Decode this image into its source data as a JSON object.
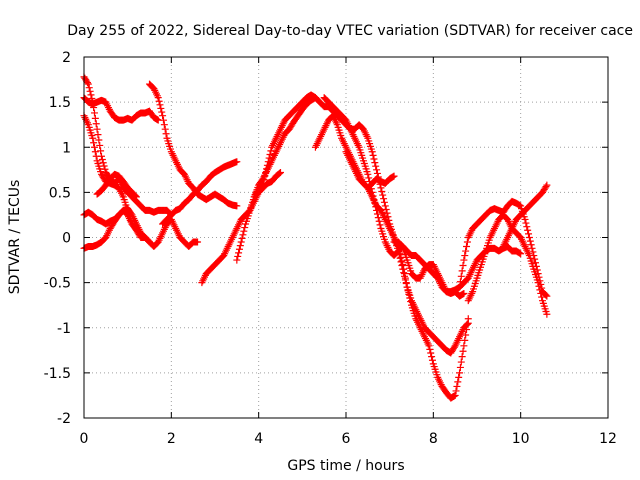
{
  "chart_data": {
    "type": "scatter",
    "title": "Day 255 of 2022, Sidereal Day-to-day VTEC variation (SDTVAR) for receiver cace",
    "xlabel": "GPS time / hours",
    "ylabel": "SDTVAR / TECUs",
    "xlim": [
      0,
      12
    ],
    "ylim": [
      -2,
      2
    ],
    "xticks": [
      "0",
      "2",
      "4",
      "6",
      "8",
      "10",
      "12"
    ],
    "yticks": [
      "2",
      "1.5",
      "1",
      "0.5",
      "0",
      "-0.5",
      "-1",
      "-1.5",
      "-2"
    ],
    "grid": true,
    "marker": "+",
    "color": "#ff0000",
    "series": [
      {
        "x": [
          0.0,
          0.1,
          0.2,
          0.3,
          0.4,
          0.5,
          0.6,
          0.7,
          0.8,
          0.9,
          1.0,
          1.1,
          1.2,
          1.3,
          1.4,
          1.5,
          1.6,
          1.7
        ],
        "y": [
          1.55,
          1.5,
          1.48,
          1.5,
          1.52,
          1.5,
          1.4,
          1.33,
          1.3,
          1.3,
          1.32,
          1.3,
          1.35,
          1.38,
          1.38,
          1.4,
          1.33,
          1.3
        ]
      },
      {
        "x": [
          0.0,
          0.1,
          0.2,
          0.3,
          0.4,
          0.5,
          0.6,
          0.7,
          0.8,
          0.9,
          1.0,
          1.1,
          1.2,
          1.3,
          1.4,
          1.5,
          1.6,
          1.7,
          1.8,
          1.9,
          2.0,
          2.1,
          2.2,
          2.3,
          2.4,
          2.5,
          2.6
        ],
        "y": [
          1.35,
          1.25,
          1.1,
          0.85,
          0.7,
          0.62,
          0.6,
          0.58,
          0.55,
          0.45,
          0.3,
          0.15,
          0.08,
          0.0,
          0.0,
          -0.05,
          -0.1,
          -0.05,
          0.05,
          0.15,
          0.2,
          0.1,
          0.0,
          -0.05,
          -0.1,
          -0.05,
          -0.05
        ]
      },
      {
        "x": [
          0.0,
          0.1,
          0.2,
          0.3,
          0.4,
          0.5,
          0.6,
          0.7,
          0.8,
          0.9,
          1.0,
          1.1,
          1.2,
          1.3,
          1.4,
          1.5,
          1.6,
          1.7,
          1.8,
          1.9,
          2.0
        ],
        "y": [
          1.78,
          1.7,
          1.5,
          1.2,
          0.9,
          0.72,
          0.65,
          0.6,
          0.65,
          0.55,
          0.5,
          0.45,
          0.4,
          0.35,
          0.3,
          0.3,
          0.28,
          0.3,
          0.3,
          0.3,
          0.25
        ]
      },
      {
        "x": [
          0.0,
          0.1,
          0.2,
          0.3,
          0.4,
          0.5,
          0.6,
          0.7,
          0.8,
          0.9,
          1.0,
          1.1,
          1.2,
          1.3,
          1.4,
          1.5
        ],
        "y": [
          0.25,
          0.28,
          0.25,
          0.2,
          0.18,
          0.15,
          0.18,
          0.2,
          0.25,
          0.3,
          0.32,
          0.25,
          0.15,
          0.05,
          0.0,
          -0.05
        ]
      },
      {
        "x": [
          0.0,
          0.1,
          0.2,
          0.3,
          0.4,
          0.5,
          0.6,
          0.7,
          0.8,
          0.9,
          1.0,
          1.1
        ],
        "y": [
          -0.12,
          -0.1,
          -0.1,
          -0.08,
          -0.05,
          0.0,
          0.1,
          0.18,
          0.25,
          0.3,
          0.25,
          0.15
        ]
      },
      {
        "x": [
          0.3,
          0.4,
          0.5,
          0.6,
          0.7,
          0.8,
          0.9,
          1.0,
          1.1,
          1.2
        ],
        "y": [
          0.48,
          0.52,
          0.58,
          0.65,
          0.7,
          0.68,
          0.62,
          0.55,
          0.5,
          0.45
        ]
      },
      {
        "x": [
          1.5,
          1.6,
          1.7,
          1.8,
          1.9,
          2.0,
          2.1,
          2.2,
          2.3,
          2.4,
          2.5,
          2.6,
          2.7,
          2.8,
          2.9,
          3.0,
          3.1,
          3.2,
          3.3,
          3.4,
          3.5
        ],
        "y": [
          1.7,
          1.65,
          1.55,
          1.35,
          1.1,
          0.95,
          0.85,
          0.75,
          0.7,
          0.6,
          0.55,
          0.48,
          0.45,
          0.42,
          0.45,
          0.48,
          0.45,
          0.42,
          0.38,
          0.36,
          0.35
        ]
      },
      {
        "x": [
          1.8,
          1.9,
          2.0,
          2.1,
          2.2,
          2.3,
          2.4,
          2.5,
          2.6,
          2.7,
          2.8,
          2.9,
          3.0,
          3.1,
          3.2,
          3.3,
          3.4,
          3.5
        ],
        "y": [
          0.15,
          0.2,
          0.25,
          0.3,
          0.32,
          0.38,
          0.42,
          0.48,
          0.52,
          0.58,
          0.62,
          0.68,
          0.72,
          0.75,
          0.78,
          0.8,
          0.82,
          0.84
        ]
      },
      {
        "x": [
          2.7,
          2.8,
          2.9,
          3.0,
          3.1,
          3.2,
          3.3,
          3.4,
          3.5,
          3.6,
          3.7,
          3.8,
          3.9,
          4.0,
          4.1,
          4.2,
          4.3,
          4.4,
          4.5
        ],
        "y": [
          -0.5,
          -0.4,
          -0.35,
          -0.3,
          -0.25,
          -0.2,
          -0.1,
          0.0,
          0.1,
          0.2,
          0.25,
          0.3,
          0.4,
          0.5,
          0.55,
          0.6,
          0.62,
          0.68,
          0.72
        ]
      },
      {
        "x": [
          3.5,
          3.6,
          3.7,
          3.8,
          3.9,
          4.0,
          4.1,
          4.2,
          4.3,
          4.4,
          4.5,
          4.6,
          4.7,
          4.8,
          4.9,
          5.0,
          5.1,
          5.2,
          5.3,
          5.4,
          5.5,
          5.6,
          5.7,
          5.8
        ],
        "y": [
          -0.25,
          -0.05,
          0.15,
          0.3,
          0.45,
          0.55,
          0.6,
          0.8,
          1.0,
          1.1,
          1.2,
          1.3,
          1.35,
          1.4,
          1.45,
          1.5,
          1.55,
          1.58,
          1.55,
          1.5,
          1.45,
          1.45,
          1.4,
          1.35
        ]
      },
      {
        "x": [
          3.9,
          4.0,
          4.1,
          4.2,
          4.3,
          4.4,
          4.5,
          4.6,
          4.7,
          4.8,
          4.9,
          5.0,
          5.1,
          5.2,
          5.3
        ],
        "y": [
          0.45,
          0.58,
          0.65,
          0.75,
          0.85,
          0.95,
          1.05,
          1.15,
          1.2,
          1.28,
          1.35,
          1.42,
          1.48,
          1.52,
          1.55
        ]
      },
      {
        "x": [
          5.3,
          5.4,
          5.5,
          5.6,
          5.7,
          5.8,
          5.9,
          6.0,
          6.1,
          6.2,
          6.3,
          6.4,
          6.5,
          6.6,
          6.7,
          6.8,
          6.9,
          7.0,
          7.1
        ],
        "y": [
          1.0,
          1.1,
          1.2,
          1.3,
          1.35,
          1.25,
          1.1,
          1.0,
          0.9,
          0.8,
          0.7,
          0.6,
          0.55,
          0.6,
          0.65,
          0.62,
          0.6,
          0.65,
          0.68
        ]
      },
      {
        "x": [
          5.5,
          5.6,
          5.7,
          5.8,
          5.9,
          6.0,
          6.1,
          6.2,
          6.3,
          6.4,
          6.5,
          6.6,
          6.7,
          6.8,
          6.9,
          7.0,
          7.1,
          7.2,
          7.3,
          7.4,
          7.5,
          7.6,
          7.7,
          7.8,
          7.9,
          8.0,
          8.1,
          8.2,
          8.3,
          8.4,
          8.5,
          8.6,
          8.7
        ],
        "y": [
          1.55,
          1.5,
          1.45,
          1.4,
          1.35,
          1.3,
          1.2,
          1.1,
          1.0,
          0.85,
          0.7,
          0.5,
          0.3,
          0.1,
          -0.05,
          -0.15,
          -0.2,
          -0.15,
          -0.1,
          -0.25,
          -0.4,
          -0.45,
          -0.45,
          -0.35,
          -0.3,
          -0.3,
          -0.4,
          -0.5,
          -0.6,
          -0.62,
          -0.6,
          -0.65,
          -0.62
        ]
      },
      {
        "x": [
          5.8,
          5.9,
          6.0,
          6.1,
          6.2,
          6.3,
          6.4,
          6.5,
          6.6,
          6.7,
          6.8,
          6.9,
          7.0,
          7.1,
          7.2,
          7.3,
          7.4,
          7.5,
          7.6,
          7.7,
          7.8,
          7.9,
          8.0,
          8.1,
          8.2,
          8.3,
          8.4,
          8.5,
          8.6,
          8.7,
          8.8
        ],
        "y": [
          1.35,
          1.3,
          1.25,
          1.2,
          1.2,
          1.25,
          1.2,
          1.1,
          0.95,
          0.75,
          0.55,
          0.35,
          0.15,
          0.0,
          -0.15,
          -0.35,
          -0.55,
          -0.7,
          -0.8,
          -0.9,
          -1.0,
          -1.05,
          -1.1,
          -1.15,
          -1.2,
          -1.25,
          -1.28,
          -1.2,
          -1.1,
          -1.0,
          -0.95
        ]
      },
      {
        "x": [
          6.0,
          6.1,
          6.2,
          6.3,
          6.4,
          6.5,
          6.6,
          6.7,
          6.8,
          6.9,
          7.0,
          7.1,
          7.2,
          7.3,
          7.4,
          7.5,
          7.6,
          7.7,
          7.8,
          7.9,
          8.0,
          8.1,
          8.2,
          8.3,
          8.4,
          8.5,
          8.6,
          8.7,
          8.8
        ],
        "y": [
          0.95,
          0.85,
          0.75,
          0.65,
          0.6,
          0.55,
          0.45,
          0.35,
          0.3,
          0.2,
          0.1,
          0.0,
          -0.1,
          -0.3,
          -0.55,
          -0.75,
          -0.9,
          -1.0,
          -1.1,
          -1.2,
          -1.4,
          -1.55,
          -1.65,
          -1.72,
          -1.78,
          -1.75,
          -1.5,
          -1.2,
          -0.9
        ]
      },
      {
        "x": [
          7.1,
          7.2,
          7.3,
          7.4,
          7.5,
          7.6,
          7.7,
          7.8,
          7.9,
          8.0,
          8.1,
          8.2,
          8.3,
          8.4,
          8.5,
          8.6,
          8.7,
          8.8,
          8.9,
          9.0,
          9.1,
          9.2,
          9.3,
          9.4,
          9.5,
          9.6,
          9.7,
          9.8,
          9.9,
          10.0
        ],
        "y": [
          -0.05,
          -0.05,
          -0.1,
          -0.15,
          -0.2,
          -0.2,
          -0.25,
          -0.3,
          -0.35,
          -0.4,
          -0.45,
          -0.55,
          -0.6,
          -0.6,
          -0.58,
          -0.55,
          -0.5,
          -0.45,
          -0.35,
          -0.25,
          -0.2,
          -0.15,
          -0.12,
          -0.12,
          -0.15,
          -0.12,
          -0.1,
          -0.15,
          -0.15,
          -0.18
        ]
      },
      {
        "x": [
          8.6,
          8.7,
          8.8,
          8.9,
          9.0,
          9.1,
          9.2,
          9.3,
          9.4,
          9.5,
          9.6,
          9.7,
          9.8,
          9.9,
          10.0,
          10.1,
          10.2,
          10.3,
          10.4,
          10.5,
          10.6
        ],
        "y": [
          -0.55,
          -0.25,
          0.0,
          0.1,
          0.15,
          0.2,
          0.25,
          0.3,
          0.32,
          0.3,
          0.28,
          0.35,
          0.4,
          0.38,
          0.35,
          0.2,
          0.0,
          -0.2,
          -0.4,
          -0.6,
          -0.65
        ]
      },
      {
        "x": [
          8.8,
          8.9,
          9.0,
          9.1,
          9.2,
          9.3,
          9.4,
          9.5,
          9.6,
          9.7,
          9.8,
          9.9,
          10.0,
          10.1,
          10.2,
          10.3,
          10.4,
          10.5,
          10.6
        ],
        "y": [
          -0.7,
          -0.6,
          -0.45,
          -0.3,
          -0.15,
          0.0,
          0.1,
          0.2,
          0.25,
          0.2,
          0.1,
          0.05,
          0.0,
          -0.1,
          -0.2,
          -0.35,
          -0.5,
          -0.7,
          -0.85
        ]
      },
      {
        "x": [
          9.6,
          9.7,
          9.8,
          9.9,
          10.0,
          10.1,
          10.2,
          10.3,
          10.4,
          10.5,
          10.6
        ],
        "y": [
          -0.1,
          0.0,
          0.1,
          0.2,
          0.25,
          0.3,
          0.35,
          0.4,
          0.45,
          0.5,
          0.58
        ]
      }
    ]
  }
}
